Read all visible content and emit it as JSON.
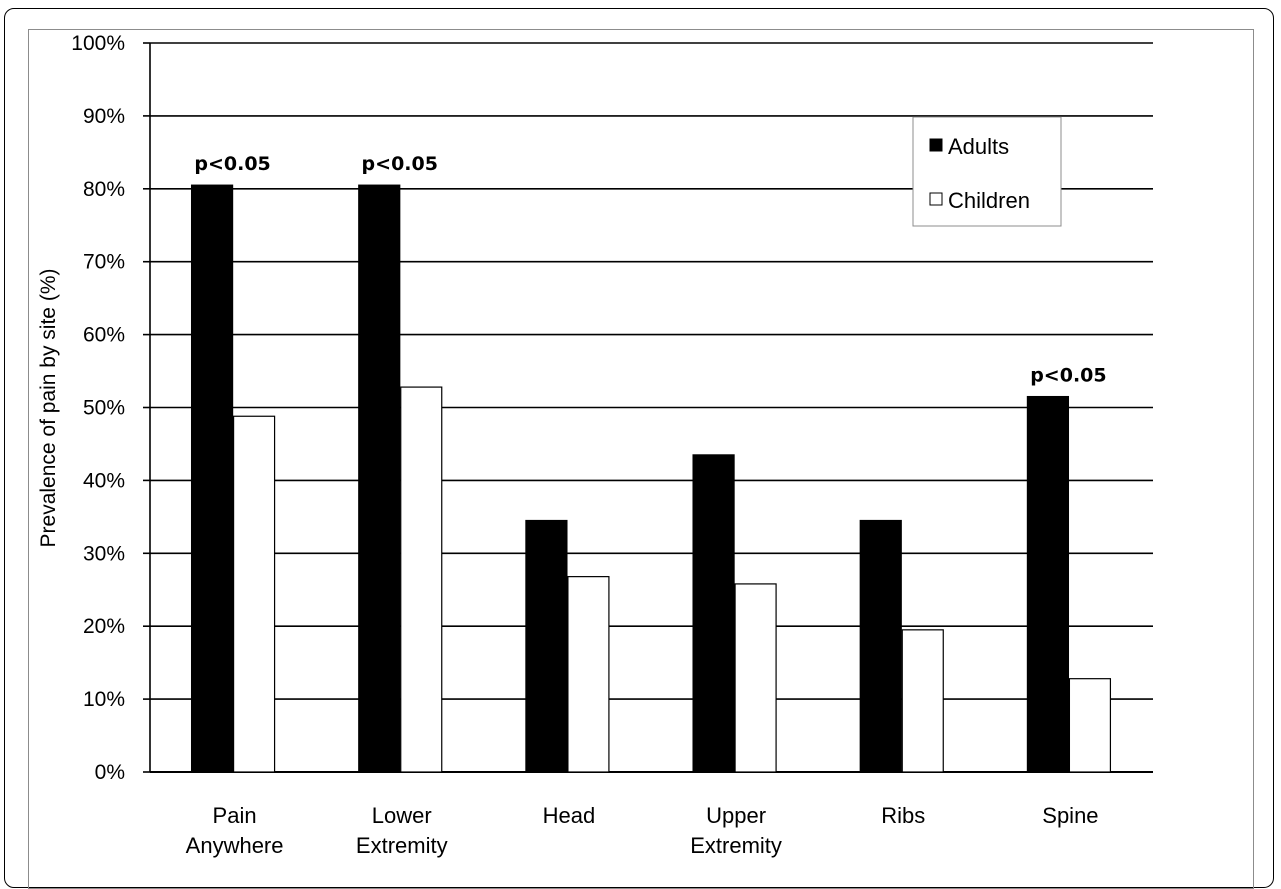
{
  "chart_data": {
    "type": "bar",
    "ylabel": "Prevalence of pain by site (%)",
    "ylim": [
      0,
      100
    ],
    "y_ticks": [
      "0%",
      "10%",
      "20%",
      "30%",
      "40%",
      "50%",
      "60%",
      "70%",
      "80%",
      "90%",
      "100%"
    ],
    "grid": true,
    "legend_position": "top-right",
    "categories": [
      [
        "Pain",
        "Anywhere"
      ],
      [
        "Lower",
        "Extremity"
      ],
      [
        "Head"
      ],
      [
        "Upper",
        "Extremity"
      ],
      [
        "Ribs"
      ],
      [
        "Spine"
      ]
    ],
    "series": [
      {
        "name": "Adults",
        "color": "#000000",
        "values": [
          80.5,
          80.5,
          34.5,
          43.5,
          34.5,
          51.5
        ]
      },
      {
        "name": "Children",
        "color": "#ffffff",
        "values": [
          48.8,
          52.8,
          26.8,
          25.8,
          19.5,
          12.8
        ]
      }
    ],
    "annotations": [
      {
        "category_index": 0,
        "text": "p<0.05"
      },
      {
        "category_index": 1,
        "text": "p<0.05"
      },
      {
        "category_index": 5,
        "text": "p<0.05"
      }
    ]
  }
}
